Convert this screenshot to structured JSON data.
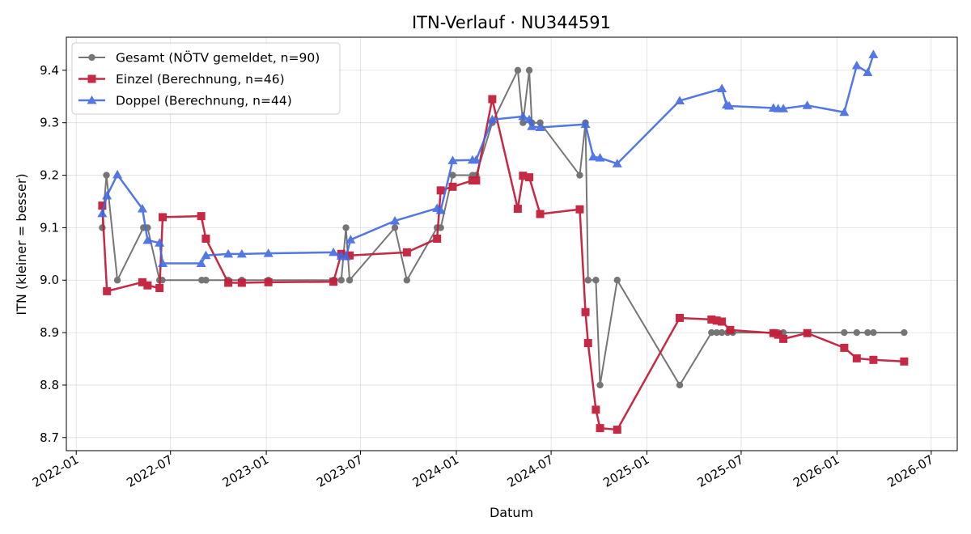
{
  "chart_data": {
    "type": "line",
    "title": "ITN-Verlauf · NU344591",
    "xlabel": "Datum",
    "ylabel": "ITN  (kleiner = besser)",
    "xlim": [
      "2021-12-13",
      "2026-08-20"
    ],
    "ylim": [
      8.675,
      9.463
    ],
    "x_ticks": [
      "2022-01-01",
      "2022-07-01",
      "2023-01-01",
      "2023-07-01",
      "2024-01-01",
      "2024-07-01",
      "2025-01-01",
      "2025-07-01",
      "2026-01-01",
      "2026-07-01"
    ],
    "x_tick_labels": [
      "2022-01",
      "2022-07",
      "2023-01",
      "2023-07",
      "2024-01",
      "2024-07",
      "2025-01",
      "2025-07",
      "2026-01",
      "2026-07"
    ],
    "y_ticks": [
      8.7,
      8.8,
      8.9,
      9.0,
      9.1,
      9.2,
      9.3,
      9.4
    ],
    "y_tick_labels": [
      "8.7",
      "8.8",
      "8.9",
      "9.0",
      "9.1",
      "9.2",
      "9.3",
      "9.4"
    ],
    "grid": true,
    "legend_position": "top-left",
    "series": [
      {
        "name": "Gesamt (NÖTV gemeldet, n=90)",
        "color": "#555555",
        "marker": "circle",
        "points": [
          [
            "2022-02-20",
            9.1
          ],
          [
            "2022-02-28",
            9.2
          ],
          [
            "2022-03-21",
            9.0
          ],
          [
            "2022-05-10",
            9.1
          ],
          [
            "2022-05-18",
            9.1
          ],
          [
            "2022-06-10",
            9.0
          ],
          [
            "2022-06-15",
            9.0
          ],
          [
            "2022-08-30",
            9.0
          ],
          [
            "2022-09-07",
            9.0
          ],
          [
            "2022-10-20",
            9.0
          ],
          [
            "2022-11-15",
            9.0
          ],
          [
            "2023-01-05",
            9.0
          ],
          [
            "2023-05-10",
            9.0
          ],
          [
            "2023-05-25",
            9.0
          ],
          [
            "2023-06-03",
            9.1
          ],
          [
            "2023-06-10",
            9.0
          ],
          [
            "2023-09-05",
            9.1
          ],
          [
            "2023-09-28",
            9.0
          ],
          [
            "2023-11-25",
            9.1
          ],
          [
            "2023-12-02",
            9.1
          ],
          [
            "2023-12-25",
            9.2
          ],
          [
            "2024-02-01",
            9.2
          ],
          [
            "2024-02-08",
            9.2
          ],
          [
            "2024-03-10",
            9.3
          ],
          [
            "2024-04-28",
            9.4
          ],
          [
            "2024-05-08",
            9.3
          ],
          [
            "2024-05-20",
            9.4
          ],
          [
            "2024-05-25",
            9.3
          ],
          [
            "2024-06-10",
            9.3
          ],
          [
            "2024-08-25",
            9.2
          ],
          [
            "2024-09-05",
            9.3
          ],
          [
            "2024-09-10",
            9.0
          ],
          [
            "2024-09-25",
            9.0
          ],
          [
            "2024-10-03",
            8.8
          ],
          [
            "2024-11-05",
            9.0
          ],
          [
            "2025-03-05",
            8.8
          ],
          [
            "2025-05-05",
            8.9
          ],
          [
            "2025-05-15",
            8.9
          ],
          [
            "2025-05-25",
            8.9
          ],
          [
            "2025-06-05",
            8.9
          ],
          [
            "2025-06-15",
            8.9
          ],
          [
            "2025-09-01",
            8.9
          ],
          [
            "2025-09-10",
            8.9
          ],
          [
            "2025-09-20",
            8.9
          ],
          [
            "2025-11-05",
            8.9
          ],
          [
            "2026-01-15",
            8.9
          ],
          [
            "2026-02-08",
            8.9
          ],
          [
            "2026-03-01",
            8.9
          ],
          [
            "2026-03-12",
            8.9
          ],
          [
            "2026-05-10",
            8.9
          ]
        ]
      },
      {
        "name": "Einzel (Berechnung, n=46)",
        "color": "#C41E3A",
        "marker": "square",
        "points": [
          [
            "2022-02-20",
            9.142
          ],
          [
            "2022-03-01",
            8.979
          ],
          [
            "2022-05-08",
            8.996
          ],
          [
            "2022-05-18",
            8.99
          ],
          [
            "2022-06-10",
            8.985
          ],
          [
            "2022-06-16",
            9.12
          ],
          [
            "2022-08-29",
            9.122
          ],
          [
            "2022-09-07",
            9.079
          ],
          [
            "2022-10-20",
            8.995
          ],
          [
            "2022-11-15",
            8.995
          ],
          [
            "2023-01-05",
            8.996
          ],
          [
            "2023-05-10",
            8.997
          ],
          [
            "2023-05-25",
            9.05
          ],
          [
            "2023-06-10",
            9.047
          ],
          [
            "2023-09-28",
            9.053
          ],
          [
            "2023-11-25",
            9.079
          ],
          [
            "2023-12-02",
            9.171
          ],
          [
            "2023-12-25",
            9.178
          ],
          [
            "2024-02-01",
            9.19
          ],
          [
            "2024-02-08",
            9.19
          ],
          [
            "2024-03-10",
            9.345
          ],
          [
            "2024-04-28",
            9.136
          ],
          [
            "2024-05-08",
            9.199
          ],
          [
            "2024-05-20",
            9.196
          ],
          [
            "2024-06-10",
            9.126
          ],
          [
            "2024-08-25",
            9.135
          ],
          [
            "2024-09-05",
            8.939
          ],
          [
            "2024-09-10",
            8.88
          ],
          [
            "2024-09-25",
            8.753
          ],
          [
            "2024-10-03",
            8.718
          ],
          [
            "2024-11-05",
            8.715
          ],
          [
            "2025-03-05",
            8.928
          ],
          [
            "2025-05-05",
            8.925
          ],
          [
            "2025-05-15",
            8.923
          ],
          [
            "2025-05-25",
            8.921
          ],
          [
            "2025-06-10",
            8.905
          ],
          [
            "2025-09-01",
            8.899
          ],
          [
            "2025-09-10",
            8.896
          ],
          [
            "2025-09-20",
            8.888
          ],
          [
            "2025-11-05",
            8.899
          ],
          [
            "2026-01-15",
            8.871
          ],
          [
            "2026-02-08",
            8.851
          ],
          [
            "2026-03-12",
            8.848
          ],
          [
            "2026-05-10",
            8.845
          ]
        ]
      },
      {
        "name": "Doppel (Berechnung, n=44)",
        "color": "#4169E1",
        "marker": "triangle",
        "points": [
          [
            "2022-02-20",
            9.127
          ],
          [
            "2022-03-01",
            9.161
          ],
          [
            "2022-03-21",
            9.201
          ],
          [
            "2022-05-08",
            9.136
          ],
          [
            "2022-05-18",
            9.076
          ],
          [
            "2022-06-10",
            9.071
          ],
          [
            "2022-06-16",
            9.032
          ],
          [
            "2022-08-29",
            9.032
          ],
          [
            "2022-09-07",
            9.047
          ],
          [
            "2022-10-20",
            9.05
          ],
          [
            "2022-11-15",
            9.05
          ],
          [
            "2023-01-05",
            9.051
          ],
          [
            "2023-05-10",
            9.053
          ],
          [
            "2023-05-25",
            9.046
          ],
          [
            "2023-06-03",
            9.045
          ],
          [
            "2023-06-12",
            9.077
          ],
          [
            "2023-09-05",
            9.113
          ],
          [
            "2023-11-25",
            9.137
          ],
          [
            "2023-12-02",
            9.133
          ],
          [
            "2023-12-25",
            9.228
          ],
          [
            "2024-02-01",
            9.229
          ],
          [
            "2024-02-08",
            9.229
          ],
          [
            "2024-03-10",
            9.306
          ],
          [
            "2024-05-08",
            9.312
          ],
          [
            "2024-05-20",
            9.306
          ],
          [
            "2024-05-25",
            9.293
          ],
          [
            "2024-06-10",
            9.291
          ],
          [
            "2024-09-05",
            9.297
          ],
          [
            "2024-09-20",
            9.235
          ],
          [
            "2024-10-03",
            9.233
          ],
          [
            "2024-11-05",
            9.222
          ],
          [
            "2025-03-05",
            9.342
          ],
          [
            "2025-05-25",
            9.365
          ],
          [
            "2025-06-03",
            9.334
          ],
          [
            "2025-06-08",
            9.332
          ],
          [
            "2025-09-01",
            9.328
          ],
          [
            "2025-09-10",
            9.327
          ],
          [
            "2025-09-20",
            9.327
          ],
          [
            "2025-11-05",
            9.333
          ],
          [
            "2026-01-15",
            9.32
          ],
          [
            "2026-02-08",
            9.409
          ],
          [
            "2026-03-01",
            9.396
          ],
          [
            "2026-03-12",
            9.43
          ]
        ]
      }
    ]
  }
}
